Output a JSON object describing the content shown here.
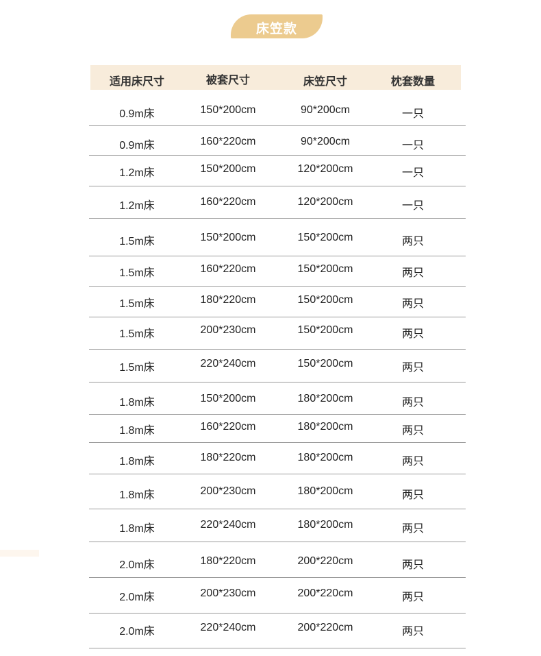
{
  "badge": {
    "label": "床笠款",
    "color": "#eccb8f"
  },
  "table": {
    "headers": [
      "适用床尺寸",
      "被套尺寸",
      "床笠尺寸",
      "枕套数量"
    ],
    "rows": [
      [
        "0.9m床",
        "150*200cm",
        "90*200cm",
        "一只"
      ],
      [
        "0.9m床",
        "160*220cm",
        "90*200cm",
        "一只"
      ],
      [
        "1.2m床",
        "150*200cm",
        "120*200cm",
        "一只"
      ],
      [
        "1.2m床",
        "160*220cm",
        "120*200cm",
        "一只"
      ],
      [
        "1.5m床",
        "150*200cm",
        "150*200cm",
        "两只"
      ],
      [
        "1.5m床",
        "160*220cm",
        "150*200cm",
        "两只"
      ],
      [
        "1.5m床",
        "180*220cm",
        "150*200cm",
        "两只"
      ],
      [
        "1.5m床",
        "200*230cm",
        "150*200cm",
        "两只"
      ],
      [
        "1.5m床",
        "220*240cm",
        "150*200cm",
        "两只"
      ],
      [
        "1.8m床",
        "150*200cm",
        "180*200cm",
        "两只"
      ],
      [
        "1.8m床",
        "160*220cm",
        "180*200cm",
        "两只"
      ],
      [
        "1.8m床",
        "180*220cm",
        "180*200cm",
        "两只"
      ],
      [
        "1.8m床",
        "200*230cm",
        "180*200cm",
        "两只"
      ],
      [
        "1.8m床",
        "220*240cm",
        "180*200cm",
        "两只"
      ],
      [
        "2.0m床",
        "180*220cm",
        "200*220cm",
        "两只"
      ],
      [
        "2.0m床",
        "200*230cm",
        "200*220cm",
        "两只"
      ],
      [
        "2.0m床",
        "220*240cm",
        "200*220cm",
        "两只"
      ]
    ]
  }
}
